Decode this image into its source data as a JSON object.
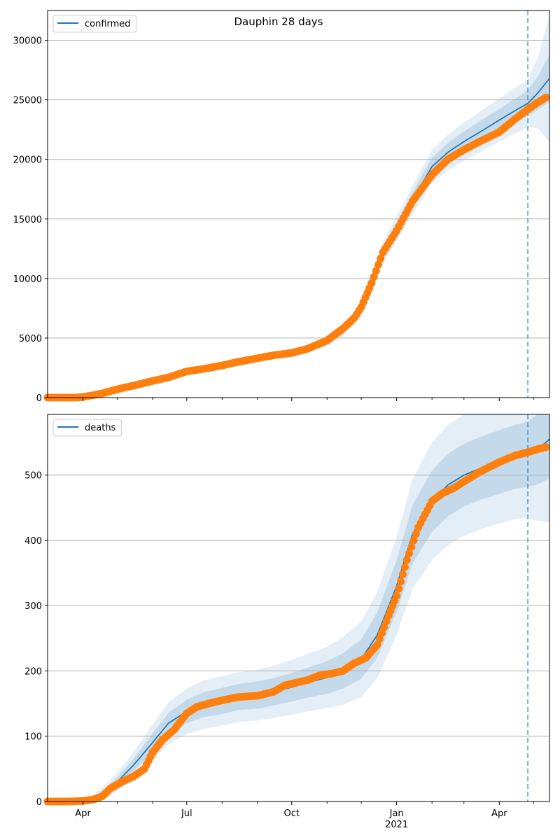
{
  "figure": {
    "title": "Dauphin 28 days"
  },
  "colors": {
    "model": "#1f77b4",
    "band": "#1f77b4",
    "observed": "#ff7f0e",
    "grid": "#b0b0b0",
    "cutoff": "#1f77b4"
  },
  "shared_x": {
    "start": "2020-03-01",
    "end": "2021-05-15",
    "cutoff_date": "2021-04-26",
    "ticks": [
      {
        "date": "2020-04-01",
        "label": "Apr",
        "sub": ""
      },
      {
        "date": "2020-07-01",
        "label": "Jul",
        "sub": ""
      },
      {
        "date": "2020-10-01",
        "label": "Oct",
        "sub": ""
      },
      {
        "date": "2021-01-01",
        "label": "Jan",
        "sub": "2021"
      },
      {
        "date": "2021-04-01",
        "label": "Apr",
        "sub": ""
      }
    ],
    "minor_ticks": [
      "2020-05-01",
      "2020-06-01",
      "2020-08-01",
      "2020-09-01",
      "2020-11-01",
      "2020-12-01",
      "2021-02-01",
      "2021-03-01",
      "2021-05-01"
    ]
  },
  "chart_data": [
    {
      "type": "line",
      "series_name": "confirmed",
      "legend": "confirmed",
      "ylim": [
        0,
        32500
      ],
      "yticks": [
        0,
        5000,
        10000,
        15000,
        20000,
        25000,
        30000
      ],
      "grid": "horizontal",
      "legend_position": "top-left",
      "model": {
        "x": [
          "2020-03-01",
          "2020-03-20",
          "2020-04-01",
          "2020-04-15",
          "2020-05-01",
          "2020-05-15",
          "2020-06-01",
          "2020-06-15",
          "2020-07-01",
          "2020-07-15",
          "2020-08-01",
          "2020-08-15",
          "2020-09-01",
          "2020-09-15",
          "2020-10-01",
          "2020-10-15",
          "2020-11-01",
          "2020-11-15",
          "2020-12-01",
          "2020-12-10",
          "2020-12-20",
          "2021-01-01",
          "2021-01-15",
          "2021-02-01",
          "2021-02-15",
          "2021-03-01",
          "2021-03-15",
          "2021-04-01",
          "2021-04-15",
          "2021-04-26",
          "2021-05-05",
          "2021-05-15"
        ],
        "y": [
          0,
          0,
          100,
          400,
          800,
          1150,
          1500,
          1800,
          2150,
          2400,
          2700,
          3000,
          3300,
          3550,
          3800,
          4100,
          4700,
          5600,
          7500,
          9800,
          12200,
          14200,
          16600,
          19400,
          20600,
          21500,
          22300,
          23300,
          24100,
          24700,
          25600,
          26800
        ],
        "band_inner_halfwidth": [
          0,
          0,
          20,
          40,
          60,
          70,
          80,
          90,
          100,
          110,
          120,
          130,
          140,
          150,
          160,
          170,
          200,
          250,
          350,
          450,
          500,
          550,
          650,
          750,
          800,
          850,
          900,
          950,
          1000,
          1100,
          1400,
          2000
        ],
        "band_outer_halfwidth": [
          0,
          0,
          40,
          80,
          110,
          130,
          150,
          170,
          190,
          210,
          230,
          250,
          270,
          290,
          310,
          330,
          380,
          450,
          600,
          800,
          900,
          1000,
          1200,
          1400,
          1500,
          1600,
          1700,
          1800,
          1900,
          2000,
          3000,
          5400
        ]
      },
      "observed": {
        "x": [
          "2020-03-01",
          "2020-03-15",
          "2020-03-25",
          "2020-04-01",
          "2020-04-10",
          "2020-04-20",
          "2020-05-01",
          "2020-05-15",
          "2020-06-01",
          "2020-06-15",
          "2020-07-01",
          "2020-07-15",
          "2020-08-01",
          "2020-08-15",
          "2020-09-01",
          "2020-09-15",
          "2020-10-01",
          "2020-10-15",
          "2020-11-01",
          "2020-11-15",
          "2020-11-25",
          "2020-12-01",
          "2020-12-10",
          "2020-12-20",
          "2021-01-01",
          "2021-01-15",
          "2021-02-01",
          "2021-02-15",
          "2021-03-01",
          "2021-03-15",
          "2021-04-01",
          "2021-04-15",
          "2021-04-26",
          "2021-05-05",
          "2021-05-12"
        ],
        "y": [
          0,
          0,
          0,
          50,
          200,
          400,
          700,
          1000,
          1400,
          1700,
          2200,
          2400,
          2700,
          3000,
          3300,
          3550,
          3750,
          4100,
          4800,
          5800,
          6700,
          7600,
          9600,
          12200,
          14000,
          16500,
          18700,
          20000,
          20800,
          21500,
          22300,
          23400,
          24200,
          24800,
          25200
        ]
      }
    },
    {
      "type": "line",
      "series_name": "deaths",
      "legend": "deaths",
      "ylim": [
        0,
        593
      ],
      "yticks": [
        0,
        100,
        200,
        300,
        400,
        500
      ],
      "grid": "horizontal",
      "legend_position": "top-left",
      "model": {
        "x": [
          "2020-03-01",
          "2020-03-20",
          "2020-04-01",
          "2020-04-10",
          "2020-04-20",
          "2020-05-01",
          "2020-05-15",
          "2020-06-01",
          "2020-06-15",
          "2020-07-01",
          "2020-07-15",
          "2020-08-01",
          "2020-08-15",
          "2020-09-01",
          "2020-09-15",
          "2020-10-01",
          "2020-10-15",
          "2020-11-01",
          "2020-11-15",
          "2020-12-01",
          "2020-12-15",
          "2021-01-01",
          "2021-01-15",
          "2021-02-01",
          "2021-02-15",
          "2021-03-01",
          "2021-03-15",
          "2021-04-01",
          "2021-04-15",
          "2021-04-26",
          "2021-05-05",
          "2021-05-15"
        ],
        "y": [
          0,
          0,
          1,
          5,
          15,
          30,
          55,
          90,
          120,
          138,
          148,
          154,
          160,
          163,
          168,
          175,
          182,
          190,
          200,
          218,
          255,
          330,
          410,
          460,
          485,
          500,
          510,
          520,
          528,
          532,
          540,
          555
        ],
        "band_inner_halfwidth": [
          0,
          0,
          1,
          2,
          4,
          7,
          10,
          14,
          16,
          18,
          19,
          20,
          20,
          21,
          21,
          22,
          23,
          25,
          27,
          30,
          35,
          40,
          45,
          47,
          48,
          48,
          48,
          49,
          49,
          50,
          54,
          60
        ],
        "band_outer_halfwidth": [
          0,
          0,
          2,
          5,
          9,
          14,
          20,
          28,
          32,
          35,
          37,
          38,
          38,
          39,
          40,
          42,
          44,
          47,
          52,
          58,
          66,
          75,
          84,
          90,
          92,
          93,
          93,
          94,
          95,
          98,
          110,
          128
        ]
      },
      "observed": {
        "x": [
          "2020-03-01",
          "2020-03-20",
          "2020-04-01",
          "2020-04-10",
          "2020-04-18",
          "2020-04-25",
          "2020-05-05",
          "2020-05-15",
          "2020-05-25",
          "2020-06-01",
          "2020-06-10",
          "2020-06-20",
          "2020-07-01",
          "2020-07-10",
          "2020-07-20",
          "2020-08-01",
          "2020-08-15",
          "2020-09-01",
          "2020-09-15",
          "2020-09-25",
          "2020-10-05",
          "2020-10-15",
          "2020-10-25",
          "2020-11-05",
          "2020-11-15",
          "2020-11-25",
          "2020-12-05",
          "2020-12-15",
          "2020-12-25",
          "2021-01-01",
          "2021-01-10",
          "2021-01-20",
          "2021-02-01",
          "2021-02-10",
          "2021-02-20",
          "2021-03-01",
          "2021-03-15",
          "2021-04-01",
          "2021-04-15",
          "2021-04-26",
          "2021-05-05",
          "2021-05-12"
        ],
        "y": [
          0,
          0,
          1,
          3,
          8,
          20,
          30,
          38,
          50,
          75,
          95,
          110,
          135,
          145,
          150,
          155,
          160,
          162,
          168,
          178,
          182,
          186,
          193,
          196,
          200,
          212,
          220,
          240,
          285,
          315,
          370,
          420,
          460,
          472,
          480,
          490,
          505,
          520,
          530,
          535,
          540,
          543
        ]
      }
    }
  ]
}
